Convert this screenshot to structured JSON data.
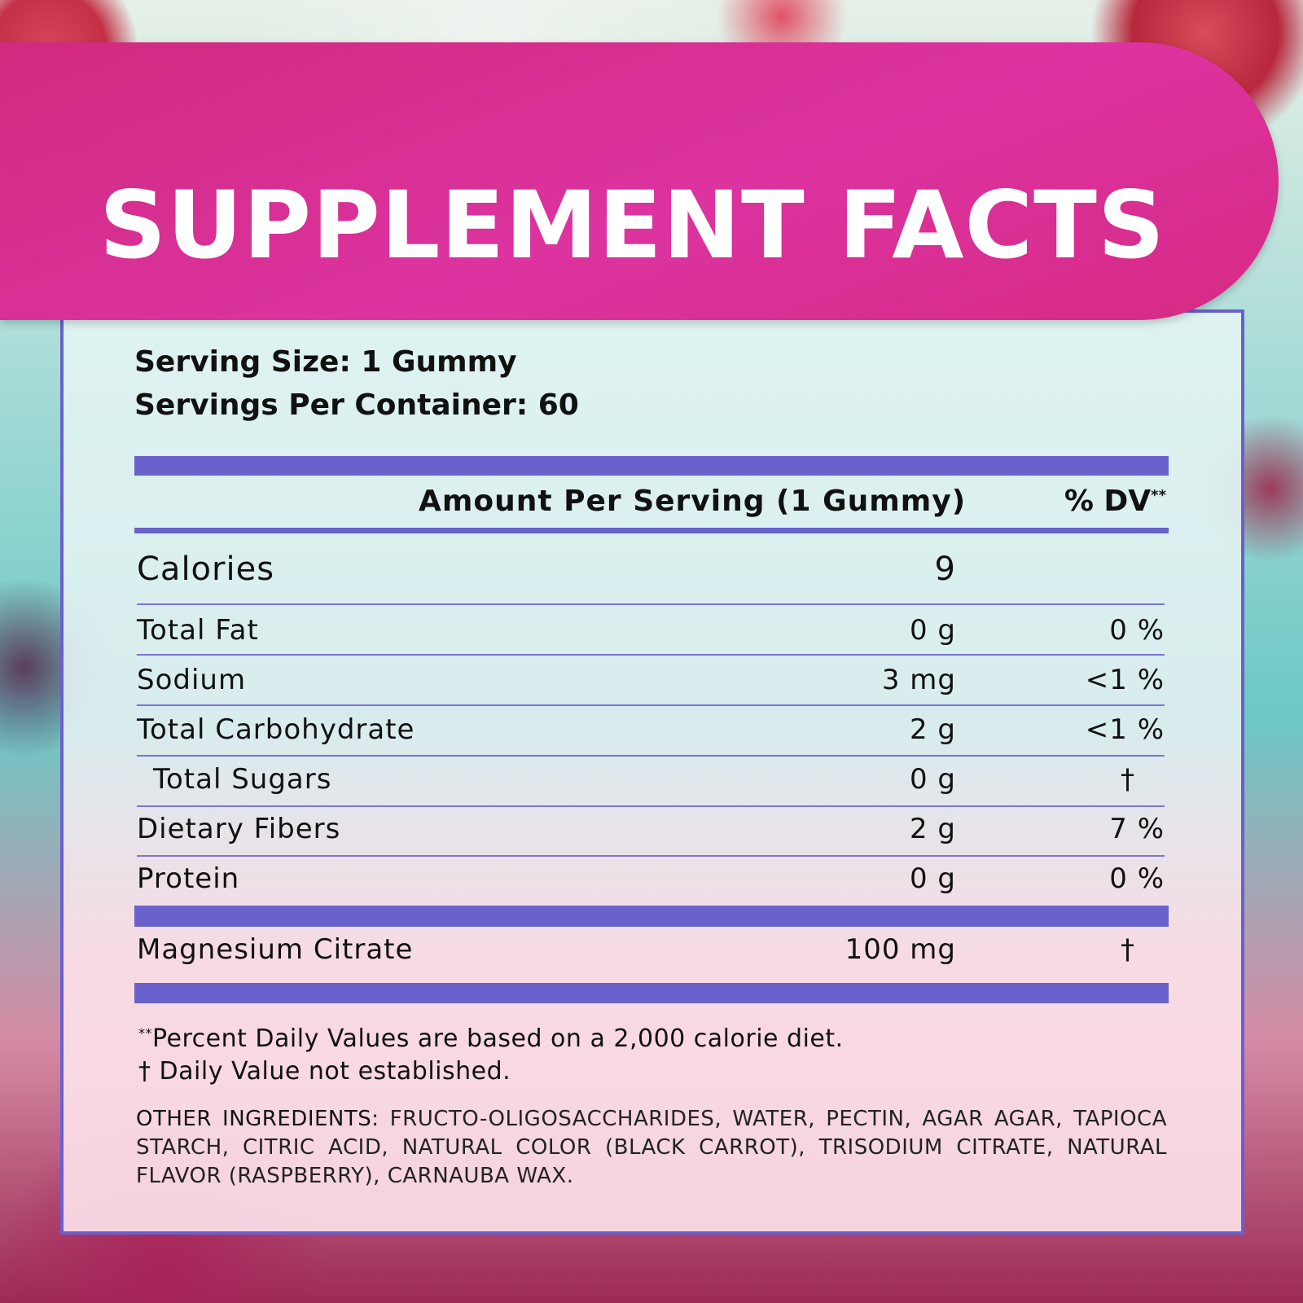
{
  "title": "SUPPLEMENT FACTS",
  "serving": {
    "size": "Serving Size: 1 Gummy",
    "per_container": "Servings Per Container: 60"
  },
  "table_header": {
    "amount": "Amount Per Serving (1 Gummy)",
    "dv": "% DV",
    "dv_mark": "**"
  },
  "calories": {
    "label": "Calories",
    "value": "9"
  },
  "nutrients": [
    {
      "name": "Total Fat",
      "amount": "0 g",
      "dv": "0 %"
    },
    {
      "name": "Sodium",
      "amount": "3 mg",
      "dv": "<1 %"
    },
    {
      "name": "Total Carbohydrate",
      "amount": "2 g",
      "dv": "<1 %"
    },
    {
      "name": "Total Sugars",
      "amount": "0 g",
      "dv": "†"
    },
    {
      "name": "Dietary Fibers",
      "amount": "2 g",
      "dv": "7 %"
    },
    {
      "name": "Protein",
      "amount": "0 g",
      "dv": "0 %"
    }
  ],
  "active": {
    "name": "Magnesium Citrate",
    "amount": "100 mg",
    "dv": "†"
  },
  "footnotes": {
    "mark": "**",
    "percent": "Percent Daily Values are based on a 2,000 calorie diet.",
    "dagger": "† Daily Value not established."
  },
  "other_ingredients": {
    "label": "OTHER INGREDIENTS:",
    "text": "FRUCTO-OLIGOSACCHARIDES, WATER, PECTIN, AGAR AGAR, TAPIOCA STARCH, CITRIC ACID, NATURAL COLOR (BLACK CARROT), TRISODIUM CITRATE, NATURAL FLAVOR (RASPBERRY), CARNAUBA WAX."
  },
  "colors": {
    "banner": "#d62a8a",
    "accent": "#6a62cc"
  }
}
